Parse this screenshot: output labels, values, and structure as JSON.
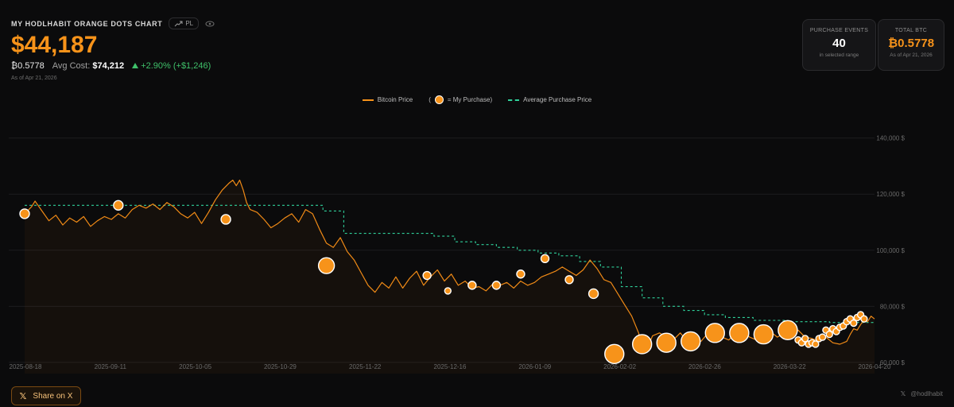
{
  "header": {
    "title": "MY HODLHABIT ORANGE DOTS CHART",
    "pl_toggle": "PL",
    "portfolio_value": "$44,187",
    "btc_holding": "₿0.5778",
    "avg_cost_label": "Avg Cost:",
    "avg_cost_value": "$74,212",
    "pl_change": "+2.90% (+$1,246)",
    "as_of": "As of Apr 21, 2026"
  },
  "cards": {
    "events": {
      "label": "PURCHASE EVENTS",
      "value": "40",
      "sub": "in selected range"
    },
    "total_btc": {
      "label": "TOTAL BTC",
      "value": "₿0.5778",
      "sub": "As of Apr 21, 2026"
    }
  },
  "legend": {
    "price": "Bitcoin Price",
    "purchase_open": "(",
    "purchase": "= My Purchase)",
    "average": "Average Purchase Price"
  },
  "footer": {
    "share_label": "Share on X",
    "handle": "@hodlhabit"
  },
  "icons": {
    "trend": "trend-icon",
    "eye": "eye-icon",
    "x_logo": "x-logo-icon"
  },
  "colors": {
    "accent": "#f7931a",
    "avg_line": "#2fd09a",
    "positive": "#3fc06a",
    "background": "#0b0b0c"
  },
  "chart_data": {
    "type": "line",
    "x_ticks": [
      "2025-08-18",
      "2025-09-11",
      "2025-10-05",
      "2025-10-29",
      "2025-11-22",
      "2025-12-16",
      "2026-01-09",
      "2026-02-02",
      "2026-02-26",
      "2026-03-22",
      "2026-04-20"
    ],
    "y_ticks": [
      "60,000 $",
      "80,000 $",
      "100,000 $",
      "120,000 $",
      "140,000 $"
    ],
    "ylim": [
      56000,
      145000
    ],
    "xlim": [
      0,
      245
    ],
    "grid": true,
    "legend_position": "top-center",
    "series": [
      {
        "name": "Bitcoin Price",
        "values": [
          [
            0,
            113000
          ],
          [
            2,
            115500
          ],
          [
            3,
            117500
          ],
          [
            5,
            114000
          ],
          [
            7,
            110500
          ],
          [
            9,
            112500
          ],
          [
            11,
            109000
          ],
          [
            13,
            111500
          ],
          [
            15,
            110000
          ],
          [
            17,
            112000
          ],
          [
            19,
            108500
          ],
          [
            21,
            110500
          ],
          [
            23,
            112000
          ],
          [
            25,
            111000
          ],
          [
            27,
            113000
          ],
          [
            29,
            111500
          ],
          [
            31,
            114500
          ],
          [
            33,
            116000
          ],
          [
            35,
            115000
          ],
          [
            37,
            116500
          ],
          [
            39,
            114500
          ],
          [
            41,
            117000
          ],
          [
            43,
            115500
          ],
          [
            45,
            113000
          ],
          [
            47,
            111500
          ],
          [
            49,
            113500
          ],
          [
            51,
            109500
          ],
          [
            53,
            113500
          ],
          [
            55,
            118000
          ],
          [
            57,
            121500
          ],
          [
            59,
            124000
          ],
          [
            60,
            125000
          ],
          [
            61,
            123000
          ],
          [
            62,
            125000
          ],
          [
            63,
            121500
          ],
          [
            64,
            117000
          ],
          [
            65,
            114500
          ],
          [
            67,
            113500
          ],
          [
            69,
            111000
          ],
          [
            71,
            108000
          ],
          [
            73,
            109500
          ],
          [
            75,
            111500
          ],
          [
            77,
            113000
          ],
          [
            79,
            110000
          ],
          [
            81,
            114500
          ],
          [
            83,
            113000
          ],
          [
            85,
            107500
          ],
          [
            87,
            102500
          ],
          [
            89,
            101000
          ],
          [
            91,
            104500
          ],
          [
            93,
            99500
          ],
          [
            95,
            96500
          ],
          [
            97,
            92000
          ],
          [
            99,
            87500
          ],
          [
            101,
            85000
          ],
          [
            103,
            88500
          ],
          [
            105,
            86500
          ],
          [
            107,
            90500
          ],
          [
            109,
            86500
          ],
          [
            111,
            90000
          ],
          [
            113,
            92500
          ],
          [
            115,
            87500
          ],
          [
            117,
            90500
          ],
          [
            119,
            93000
          ],
          [
            121,
            89000
          ],
          [
            123,
            91500
          ],
          [
            125,
            87500
          ],
          [
            127,
            89000
          ],
          [
            129,
            86500
          ],
          [
            131,
            87000
          ],
          [
            133,
            85500
          ],
          [
            135,
            88000
          ],
          [
            137,
            87500
          ],
          [
            139,
            88500
          ],
          [
            141,
            86500
          ],
          [
            143,
            89000
          ],
          [
            145,
            87500
          ],
          [
            147,
            88500
          ],
          [
            149,
            90500
          ],
          [
            151,
            91500
          ],
          [
            153,
            92500
          ],
          [
            155,
            94000
          ],
          [
            157,
            92500
          ],
          [
            159,
            91000
          ],
          [
            161,
            93000
          ],
          [
            163,
            96500
          ],
          [
            165,
            93500
          ],
          [
            167,
            89500
          ],
          [
            169,
            88500
          ],
          [
            171,
            84500
          ],
          [
            173,
            80500
          ],
          [
            175,
            76500
          ],
          [
            177,
            70500
          ],
          [
            178,
            65500
          ],
          [
            179,
            63500
          ],
          [
            181,
            69500
          ],
          [
            183,
            70500
          ],
          [
            185,
            69000
          ],
          [
            187,
            68000
          ],
          [
            189,
            70500
          ],
          [
            191,
            67500
          ],
          [
            193,
            69000
          ],
          [
            195,
            67500
          ],
          [
            197,
            70500
          ],
          [
            199,
            67500
          ],
          [
            201,
            69000
          ],
          [
            203,
            68000
          ],
          [
            205,
            70500
          ],
          [
            207,
            71500
          ],
          [
            209,
            69000
          ],
          [
            211,
            68000
          ],
          [
            213,
            70500
          ],
          [
            215,
            71000
          ],
          [
            217,
            69000
          ],
          [
            219,
            70500
          ],
          [
            221,
            69000
          ],
          [
            223,
            71500
          ],
          [
            225,
            69000
          ],
          [
            227,
            68500
          ],
          [
            229,
            67500
          ],
          [
            231,
            69000
          ],
          [
            233,
            67000
          ],
          [
            235,
            66500
          ],
          [
            237,
            67500
          ],
          [
            238,
            70000
          ],
          [
            239,
            72000
          ],
          [
            240,
            71500
          ],
          [
            241,
            73500
          ],
          [
            242,
            75000
          ],
          [
            243,
            74500
          ],
          [
            244,
            76500
          ],
          [
            245,
            75500
          ]
        ]
      },
      {
        "name": "Average Purchase Price",
        "values": [
          [
            0,
            116000
          ],
          [
            86,
            116000
          ],
          [
            86,
            114000
          ],
          [
            92,
            114000
          ],
          [
            92,
            106000
          ],
          [
            118,
            106000
          ],
          [
            118,
            105000
          ],
          [
            124,
            105000
          ],
          [
            124,
            103000
          ],
          [
            130,
            103000
          ],
          [
            130,
            102000
          ],
          [
            136,
            102000
          ],
          [
            136,
            101000
          ],
          [
            142,
            101000
          ],
          [
            142,
            100000
          ],
          [
            148,
            100000
          ],
          [
            148,
            99000
          ],
          [
            154,
            99000
          ],
          [
            154,
            98000
          ],
          [
            160,
            98000
          ],
          [
            160,
            96000
          ],
          [
            166,
            96000
          ],
          [
            166,
            94000
          ],
          [
            172,
            94000
          ],
          [
            172,
            87000
          ],
          [
            178,
            87000
          ],
          [
            178,
            83000
          ],
          [
            184,
            83000
          ],
          [
            184,
            80000
          ],
          [
            190,
            80000
          ],
          [
            190,
            78500
          ],
          [
            196,
            78500
          ],
          [
            196,
            77000
          ],
          [
            202,
            77000
          ],
          [
            202,
            76000
          ],
          [
            210,
            76000
          ],
          [
            210,
            75000
          ],
          [
            220,
            75000
          ],
          [
            220,
            74500
          ],
          [
            232,
            74500
          ],
          [
            232,
            74212
          ],
          [
            245,
            74212
          ]
        ]
      }
    ],
    "purchases": [
      [
        0,
        113000,
        6
      ],
      [
        27,
        116000,
        6
      ],
      [
        58,
        111000,
        6
      ],
      [
        87,
        94500,
        10
      ],
      [
        116,
        91000,
        5
      ],
      [
        122,
        85500,
        4
      ],
      [
        129,
        87500,
        5
      ],
      [
        136,
        87500,
        5
      ],
      [
        143,
        91500,
        5
      ],
      [
        150,
        97000,
        5
      ],
      [
        157,
        89500,
        5
      ],
      [
        164,
        84500,
        6
      ],
      [
        170,
        63000,
        12
      ],
      [
        178,
        66500,
        12
      ],
      [
        185,
        67000,
        12
      ],
      [
        192,
        67500,
        12
      ],
      [
        199,
        70500,
        12
      ],
      [
        206,
        70500,
        12
      ],
      [
        213,
        70000,
        12
      ],
      [
        220,
        71500,
        12
      ],
      [
        223,
        68000,
        4
      ],
      [
        224,
        67000,
        4
      ],
      [
        225,
        68500,
        4
      ],
      [
        226,
        66500,
        4
      ],
      [
        227,
        67000,
        4
      ],
      [
        228,
        66500,
        4
      ],
      [
        229,
        68500,
        4
      ],
      [
        230,
        69000,
        4
      ],
      [
        231,
        71500,
        4
      ],
      [
        232,
        70000,
        4
      ],
      [
        233,
        72000,
        4
      ],
      [
        234,
        71000,
        4
      ],
      [
        235,
        72500,
        4
      ],
      [
        236,
        73000,
        4
      ],
      [
        237,
        74500,
        4
      ],
      [
        238,
        75500,
        4
      ],
      [
        239,
        74000,
        4
      ],
      [
        240,
        76000,
        4
      ],
      [
        241,
        77000,
        4
      ],
      [
        242,
        75500,
        4
      ]
    ]
  }
}
